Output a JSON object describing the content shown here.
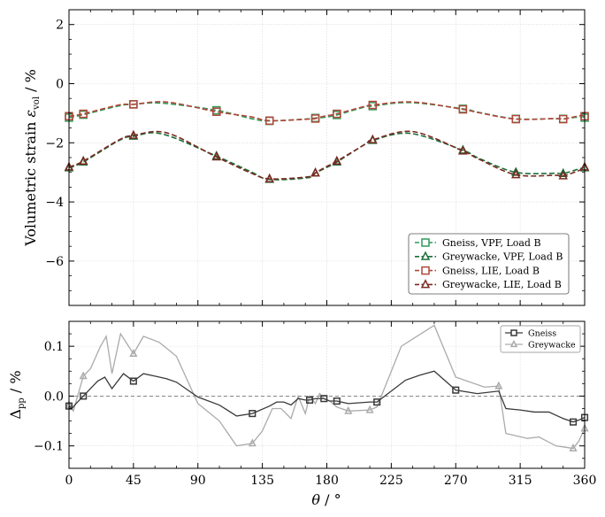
{
  "chart_data": [
    {
      "type": "line",
      "xlim": [
        0,
        360
      ],
      "ylim": [
        -7.5,
        2.5
      ],
      "yticks": [
        -6,
        -4,
        -2,
        0,
        2
      ],
      "xticks": [
        0,
        45,
        90,
        135,
        180,
        225,
        270,
        315,
        360
      ],
      "ylabel_main": "Volumetric strain ",
      "ylabel_sym": "ε",
      "ylabel_sub": "vol",
      "ylabel_unit": " / %",
      "grid": true,
      "legend_position": "lower-right",
      "series": [
        {
          "name": "Gneiss, VPF, Load B",
          "color": "#2e9a5a",
          "dash": "6,3",
          "marker": "square",
          "x": [
            0,
            10,
            35,
            45,
            65,
            103,
            127,
            140,
            167,
            172,
            178,
            187,
            207,
            212,
            238,
            275,
            286,
            312,
            340,
            345,
            357,
            360
          ],
          "y": [
            -1.15,
            -1.05,
            -0.75,
            -0.7,
            -0.66,
            -0.9,
            -1.18,
            -1.26,
            -1.19,
            -1.16,
            -1.14,
            -1.06,
            -0.78,
            -0.76,
            -0.64,
            -0.85,
            -0.97,
            -1.19,
            -1.18,
            -1.19,
            -1.12,
            -1.15
          ]
        },
        {
          "name": "Greywacke, VPF, Load B",
          "color": "#1e6e3a",
          "dash": "6,3",
          "marker": "triangle",
          "x": [
            0,
            10,
            35,
            45,
            65,
            103,
            127,
            140,
            167,
            172,
            178,
            187,
            207,
            212,
            238,
            275,
            286,
            312,
            340,
            345,
            357,
            360
          ],
          "y": [
            -2.85,
            -2.65,
            -1.92,
            -1.78,
            -1.7,
            -2.45,
            -2.98,
            -3.24,
            -3.18,
            -3.02,
            -2.88,
            -2.65,
            -2.04,
            -1.92,
            -1.68,
            -2.25,
            -2.52,
            -3.0,
            -3.03,
            -3.04,
            -2.87,
            -2.85
          ]
        },
        {
          "name": "Gneiss, LIE, Load B",
          "color": "#b0473a",
          "dash": "6,3",
          "marker": "square",
          "x": [
            0,
            10,
            35,
            45,
            68,
            103,
            127,
            140,
            167,
            172,
            178,
            187,
            207,
            212,
            240,
            275,
            286,
            312,
            340,
            345,
            357,
            360
          ],
          "y": [
            -1.1,
            -1.02,
            -0.72,
            -0.7,
            -0.62,
            -0.95,
            -1.12,
            -1.25,
            -1.2,
            -1.18,
            -1.1,
            -1.02,
            -0.76,
            -0.72,
            -0.62,
            -0.87,
            -0.98,
            -1.2,
            -1.18,
            -1.2,
            -1.08,
            -1.1
          ]
        },
        {
          "name": "Greywacke, LIE, Load B",
          "color": "#7a2a22",
          "dash": "6,3",
          "marker": "triangle",
          "x": [
            0,
            10,
            35,
            45,
            68,
            103,
            127,
            140,
            167,
            172,
            178,
            187,
            207,
            212,
            240,
            275,
            286,
            312,
            340,
            345,
            357,
            360
          ],
          "y": [
            -2.82,
            -2.62,
            -1.9,
            -1.75,
            -1.66,
            -2.48,
            -3.02,
            -3.22,
            -3.15,
            -3.02,
            -2.85,
            -2.62,
            -2.04,
            -1.9,
            -1.62,
            -2.28,
            -2.55,
            -3.08,
            -3.1,
            -3.12,
            -2.92,
            -2.82
          ]
        }
      ]
    },
    {
      "type": "line",
      "xlim": [
        0,
        360
      ],
      "ylim": [
        -0.145,
        0.15
      ],
      "yticks": [
        -0.1,
        0.0,
        0.1
      ],
      "xticks": [
        0,
        45,
        90,
        135,
        180,
        225,
        270,
        315,
        360
      ],
      "xlabel_sym": "θ",
      "xlabel_unit": " / °",
      "ylabel_sym": "Δ",
      "ylabel_sub": "pp",
      "ylabel_unit": " / %",
      "reference_line_y": 0,
      "grid": true,
      "legend_position": "top-right",
      "series": [
        {
          "name": "Gneiss",
          "color": "#3a3a3a",
          "marker": "square",
          "x": [
            0,
            2,
            5,
            10,
            15,
            20,
            25,
            30,
            38,
            45,
            52,
            60,
            68,
            75,
            90,
            105,
            117,
            128,
            140,
            145,
            150,
            155,
            160,
            165,
            168,
            172,
            178,
            182,
            187,
            195,
            210,
            215,
            225,
            235,
            245,
            255,
            270,
            285,
            300,
            305,
            315,
            325,
            335,
            345,
            352,
            356,
            360
          ],
          "y": [
            -0.02,
            -0.025,
            -0.015,
            0.0,
            0.015,
            0.03,
            0.038,
            0.015,
            0.045,
            0.03,
            0.045,
            0.04,
            0.035,
            0.028,
            -0.002,
            -0.018,
            -0.04,
            -0.035,
            -0.02,
            -0.012,
            -0.012,
            -0.018,
            -0.005,
            -0.008,
            -0.008,
            -0.005,
            -0.005,
            -0.01,
            -0.01,
            -0.015,
            -0.012,
            -0.012,
            0.01,
            0.032,
            0.042,
            0.05,
            0.012,
            0.005,
            0.01,
            -0.025,
            -0.028,
            -0.032,
            -0.032,
            -0.045,
            -0.052,
            -0.048,
            -0.043
          ]
        },
        {
          "name": "Greywacke",
          "color": "#aaaaaa",
          "marker": "triangle",
          "x": [
            0,
            3,
            5,
            10,
            15,
            22,
            26,
            30,
            36,
            45,
            52,
            63,
            75,
            90,
            105,
            117,
            128,
            135,
            142,
            148,
            155,
            160,
            165,
            168,
            172,
            175,
            178,
            182,
            187,
            195,
            210,
            215,
            232,
            255,
            270,
            290,
            300,
            305,
            320,
            328,
            340,
            345,
            352,
            356,
            360
          ],
          "y": [
            -0.018,
            -0.03,
            -0.01,
            0.04,
            0.055,
            0.1,
            0.12,
            0.045,
            0.125,
            0.085,
            0.12,
            0.108,
            0.08,
            -0.015,
            -0.05,
            -0.1,
            -0.095,
            -0.07,
            -0.025,
            -0.025,
            -0.045,
            0.0,
            -0.035,
            0.0,
            -0.015,
            0.005,
            -0.005,
            -0.01,
            -0.022,
            -0.03,
            -0.028,
            -0.022,
            0.1,
            0.142,
            0.038,
            0.018,
            0.02,
            -0.075,
            -0.085,
            -0.082,
            -0.1,
            -0.102,
            -0.105,
            -0.09,
            -0.065
          ]
        }
      ]
    }
  ]
}
